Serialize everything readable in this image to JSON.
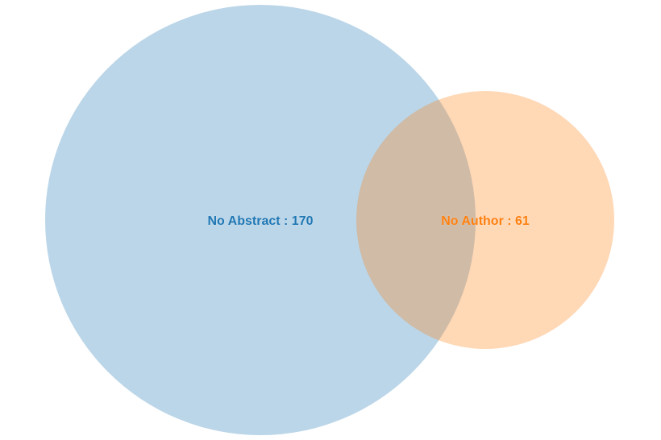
{
  "venn": {
    "sets": [
      {
        "id": "no-abstract",
        "label": "No Abstract : 170",
        "name": "No Abstract",
        "size": 170,
        "fill": "#1f77b4",
        "text_color": "#1f77b4"
      },
      {
        "id": "no-author",
        "label": "No Author : 61",
        "name": "No Author",
        "size": 61,
        "fill": "#ff7f0e",
        "text_color": "#ff7f0e"
      }
    ],
    "fill_opacity": 0.3
  }
}
